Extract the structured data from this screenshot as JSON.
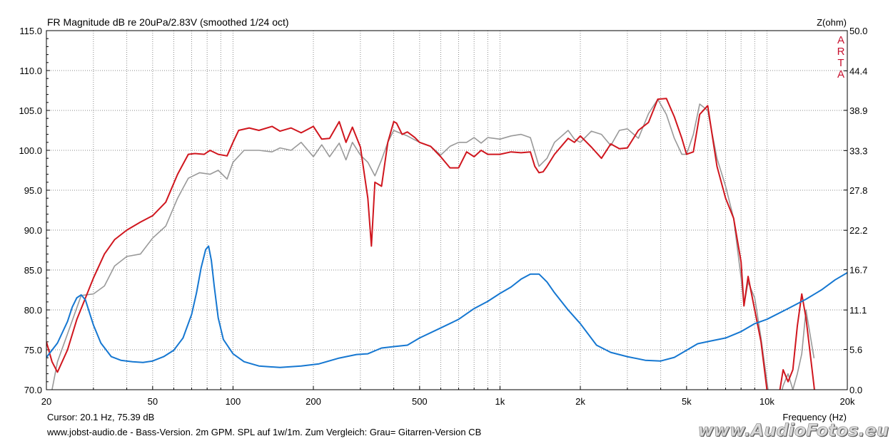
{
  "chart_data": {
    "type": "line",
    "title": "FR Magnitude dB re 20uPa/2.83V (smoothed 1/24 oct)",
    "xlabel": "Frequency (Hz)",
    "ylabel": "",
    "y2label": "Z(ohm)",
    "x_scale": "log",
    "xlim": [
      20,
      20000
    ],
    "ylim": [
      70,
      115
    ],
    "y2lim": [
      0,
      50
    ],
    "grid": true,
    "x_tick_values": [
      20,
      50,
      100,
      200,
      500,
      1000,
      2000,
      5000,
      10000,
      20000
    ],
    "x_tick_labels": [
      "20",
      "50",
      "100",
      "200",
      "500",
      "1k",
      "2k",
      "5k",
      "10k",
      "20k"
    ],
    "y_tick_values": [
      115,
      110,
      105,
      100,
      95,
      90,
      85,
      80,
      75,
      70
    ],
    "y_tick_labels": [
      "115.0",
      "110.0",
      "105.0",
      "100.0",
      "95.0",
      "90.0",
      "85.0",
      "80.0",
      "75.0",
      "70.0"
    ],
    "y2_tick_values": [
      50,
      44.4,
      38.9,
      33.3,
      27.8,
      22.2,
      16.7,
      11.1,
      5.6,
      0
    ],
    "y2_tick_labels": [
      "50.0",
      "44.4",
      "38.9",
      "33.3",
      "27.8",
      "22.2",
      "16.7",
      "11.1",
      "5.6",
      "0.0"
    ],
    "series": [
      {
        "color": "#999999",
        "axis": "left",
        "x": [
          20,
          21,
          22,
          24,
          27,
          30,
          33,
          36,
          40,
          45,
          50,
          56,
          62,
          68,
          75,
          82,
          88,
          95,
          100,
          110,
          125,
          140,
          150,
          165,
          180,
          200,
          215,
          230,
          250,
          265,
          280,
          300,
          320,
          340,
          360,
          380,
          400,
          420,
          450,
          480,
          500,
          550,
          600,
          650,
          700,
          750,
          800,
          850,
          900,
          1000,
          1100,
          1200,
          1300,
          1400,
          1500,
          1600,
          1800,
          1900,
          2000,
          2200,
          2400,
          2600,
          2800,
          3000,
          3300,
          3600,
          3900,
          4200,
          4500,
          4800,
          5000,
          5300,
          5600,
          6000,
          6500,
          7000,
          7500,
          8000,
          8200,
          8500,
          9000,
          9500,
          10000,
          10500,
          11000,
          11500,
          12000,
          12500,
          13000,
          13500,
          14000,
          15000
        ],
        "y": [
          69.5,
          70,
          73.5,
          77,
          81.8,
          82,
          83,
          85.5,
          86.7,
          87,
          89,
          90.5,
          94,
          96.5,
          97.2,
          97,
          97.5,
          96.4,
          98.5,
          100,
          100,
          99.8,
          100.3,
          100,
          101,
          99.2,
          100.7,
          99.2,
          100.9,
          98.8,
          101,
          99.4,
          98.5,
          96.8,
          98.8,
          101,
          102.5,
          102.2,
          101.8,
          101.3,
          101,
          100.5,
          99.4,
          100.5,
          101,
          101,
          101.6,
          100.9,
          101.6,
          101.4,
          101.8,
          102,
          101.6,
          98,
          99,
          101,
          102.5,
          101.4,
          101,
          102.4,
          102,
          100.6,
          102.5,
          102.7,
          101.5,
          104.6,
          106.4,
          104.5,
          101.5,
          99.5,
          99.5,
          102,
          105.8,
          105,
          99,
          95.5,
          91.5,
          84,
          80.5,
          83.5,
          81.5,
          76.5,
          71,
          66,
          68,
          70.5,
          72,
          70,
          72,
          74.5,
          80,
          74
        ]
      },
      {
        "color": "#d0161e",
        "axis": "left",
        "x": [
          20,
          21,
          22,
          24,
          26,
          28,
          30,
          33,
          36,
          40,
          45,
          50,
          56,
          62,
          68,
          72,
          78,
          82,
          88,
          95,
          100,
          105,
          115,
          125,
          140,
          150,
          165,
          180,
          200,
          215,
          230,
          250,
          265,
          280,
          300,
          320,
          330,
          340,
          360,
          380,
          400,
          410,
          430,
          450,
          480,
          500,
          550,
          600,
          650,
          700,
          750,
          800,
          850,
          900,
          1000,
          1100,
          1200,
          1300,
          1350,
          1400,
          1450,
          1500,
          1600,
          1800,
          1900,
          2000,
          2200,
          2400,
          2600,
          2800,
          3000,
          3300,
          3600,
          3900,
          4200,
          4500,
          4800,
          5000,
          5300,
          5600,
          6000,
          6500,
          7000,
          7500,
          8000,
          8200,
          8500,
          9000,
          9500,
          10000,
          10500,
          11000,
          11500,
          12000,
          12500,
          13000,
          13500,
          14000,
          15000,
          16000
        ],
        "y": [
          76,
          73.5,
          72.2,
          75,
          78.8,
          81.5,
          84,
          87,
          88.8,
          90,
          91,
          91.8,
          93.5,
          97,
          99.5,
          99.6,
          99.5,
          100,
          99.5,
          99.3,
          101,
          102.5,
          102.8,
          102.5,
          103,
          102.4,
          102.8,
          102.2,
          103,
          101.4,
          101.5,
          103.6,
          101,
          102.9,
          100.4,
          94,
          88,
          96,
          95.5,
          101,
          103.6,
          103.4,
          102,
          102.3,
          101.6,
          101,
          100.5,
          99.2,
          97.8,
          97.8,
          99.8,
          99.2,
          100,
          99.5,
          99.5,
          99.8,
          99.7,
          99.8,
          98,
          97.2,
          97.3,
          98,
          99.5,
          101.5,
          101,
          101.8,
          100.4,
          99,
          100.8,
          100.2,
          100.3,
          102.5,
          103.5,
          106.4,
          106.5,
          104.2,
          101.5,
          99.5,
          99.8,
          104.5,
          105.6,
          98,
          94,
          91.5,
          86,
          80.5,
          84.2,
          80,
          76,
          70,
          65,
          68.5,
          72.5,
          71,
          72.5,
          78,
          82,
          79,
          70.5,
          62
        ]
      },
      {
        "color": "#1577d1",
        "axis": "right",
        "x": [
          20,
          22,
          24,
          25,
          26,
          27,
          28,
          30,
          32,
          35,
          38,
          42,
          46,
          50,
          55,
          60,
          65,
          70,
          73,
          76,
          79,
          81,
          83,
          85,
          88,
          92,
          100,
          110,
          125,
          150,
          180,
          210,
          250,
          290,
          320,
          360,
          400,
          450,
          500,
          600,
          700,
          800,
          900,
          1000,
          1100,
          1200,
          1300,
          1400,
          1500,
          1600,
          1800,
          2000,
          2300,
          2600,
          3000,
          3500,
          4000,
          4500,
          5000,
          5500,
          6000,
          7000,
          8000,
          9000,
          10000,
          12000,
          14000,
          16000,
          18000,
          20000
        ],
        "y": [
          4.5,
          6.5,
          9.5,
          11.5,
          12.8,
          13.2,
          12.5,
          9,
          6.5,
          4.6,
          4.1,
          3.9,
          3.8,
          4,
          4.6,
          5.5,
          7.2,
          10.5,
          13.5,
          17,
          19.5,
          20,
          18,
          14.5,
          10,
          7,
          5,
          3.9,
          3.3,
          3.1,
          3.3,
          3.6,
          4.4,
          4.9,
          5,
          5.8,
          6,
          6.2,
          7.2,
          8.6,
          9.8,
          11.3,
          12.3,
          13.4,
          14.3,
          15.4,
          16.1,
          16.1,
          15,
          13.5,
          11.1,
          9.2,
          6.2,
          5.2,
          4.6,
          4.1,
          4,
          4.5,
          5.5,
          6.4,
          6.7,
          7.2,
          8.1,
          9.2,
          9.8,
          11.3,
          12.6,
          13.9,
          15.3,
          16.3
        ]
      }
    ],
    "cursor_text": "Cursor: 20.1 Hz, 75.39 dB",
    "footer_text": "www.jobst-audio.de - Bass-Version. 2m GPM. SPL auf 1w/1m. Zum Vergleich: Grau= Gitarren-Version CB",
    "logo_letters": [
      "A",
      "R",
      "T",
      "A"
    ],
    "watermark": "www.AudioFotos.eu"
  }
}
